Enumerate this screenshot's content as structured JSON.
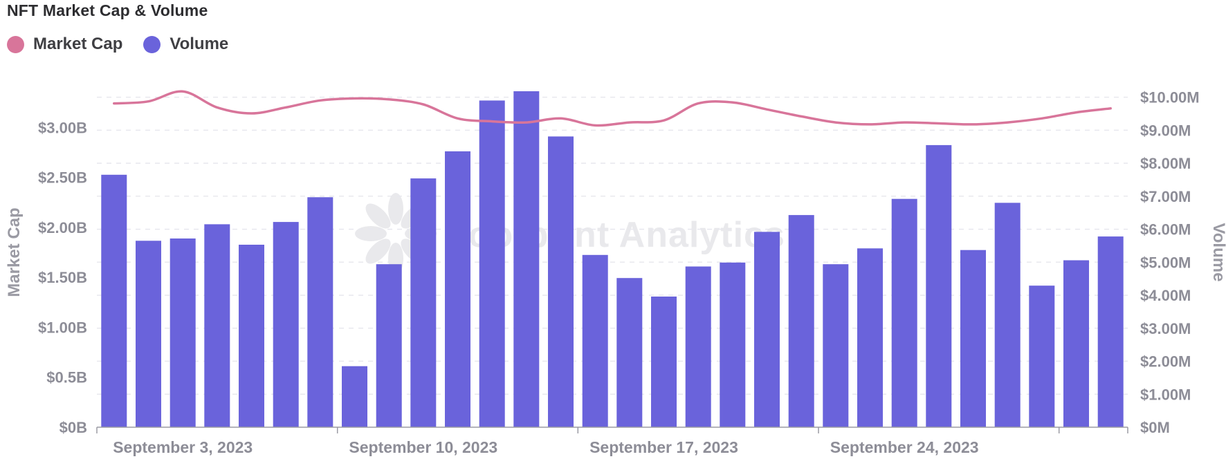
{
  "title": "NFT Market Cap & Volume",
  "legend": {
    "items": [
      {
        "label": "Market Cap",
        "color": "#d8759a"
      },
      {
        "label": "Volume",
        "color": "#6a63db"
      }
    ]
  },
  "watermark": {
    "text": "Footprint Analytics"
  },
  "chart_data": {
    "type": "bar",
    "subtype": "combo-bar-line-dual-axis",
    "grid": true,
    "legend_position": "top-left",
    "categories": [
      "2023-09-01",
      "2023-09-02",
      "2023-09-03",
      "2023-09-04",
      "2023-09-05",
      "2023-09-06",
      "2023-09-07",
      "2023-09-08",
      "2023-09-09",
      "2023-09-10",
      "2023-09-11",
      "2023-09-12",
      "2023-09-13",
      "2023-09-14",
      "2023-09-15",
      "2023-09-16",
      "2023-09-17",
      "2023-09-18",
      "2023-09-19",
      "2023-09-20",
      "2023-09-21",
      "2023-09-22",
      "2023-09-23",
      "2023-09-24",
      "2023-09-25",
      "2023-09-26",
      "2023-09-27",
      "2023-09-28",
      "2023-09-29",
      "2023-09-30"
    ],
    "x_tick_labels": [
      "September 3, 2023",
      "September 10, 2023",
      "September 17, 2023",
      "September 24, 2023"
    ],
    "x_tick_category_indexes": [
      2,
      9,
      16,
      23
    ],
    "series": [
      {
        "name": "Market Cap",
        "type": "line",
        "axis": "left",
        "unit": "B",
        "color": "#d8759a",
        "values": [
          3.24,
          3.26,
          3.36,
          3.2,
          3.14,
          3.2,
          3.27,
          3.29,
          3.28,
          3.23,
          3.09,
          3.06,
          3.05,
          3.09,
          3.02,
          3.05,
          3.07,
          3.24,
          3.25,
          3.18,
          3.11,
          3.05,
          3.03,
          3.05,
          3.04,
          3.03,
          3.05,
          3.09,
          3.15,
          3.19
        ]
      },
      {
        "name": "Volume",
        "type": "bar",
        "axis": "right",
        "unit": "M",
        "color": "#6a63db",
        "values": [
          7.65,
          5.65,
          5.72,
          6.15,
          5.53,
          6.22,
          6.97,
          1.85,
          4.94,
          7.54,
          8.36,
          9.9,
          10.18,
          8.81,
          5.22,
          4.52,
          3.96,
          4.87,
          4.99,
          5.92,
          6.43,
          4.94,
          5.42,
          6.92,
          8.55,
          5.37,
          6.8,
          4.29,
          5.06,
          5.78
        ]
      }
    ],
    "left_axis": {
      "title": "Market Cap",
      "min": 0,
      "max": 3.5,
      "tick_values": [
        0,
        0.5,
        1,
        1.5,
        2,
        2.5,
        3
      ],
      "tick_labels": [
        "$0B",
        "$0.5B",
        "$1.00B",
        "$1.50B",
        "$2.00B",
        "$2.50B",
        "$3.00B"
      ]
    },
    "right_axis": {
      "title": "Volume",
      "min": 0,
      "max": 10.6,
      "tick_values": [
        0,
        1,
        2,
        3,
        4,
        5,
        6,
        7,
        8,
        9,
        10
      ],
      "tick_labels": [
        "$0M",
        "$1.00M",
        "$2.00M",
        "$3.00M",
        "$4.00M",
        "$5.00M",
        "$6.00M",
        "$7.00M",
        "$8.00M",
        "$9.00M",
        "$10.00M"
      ]
    }
  }
}
